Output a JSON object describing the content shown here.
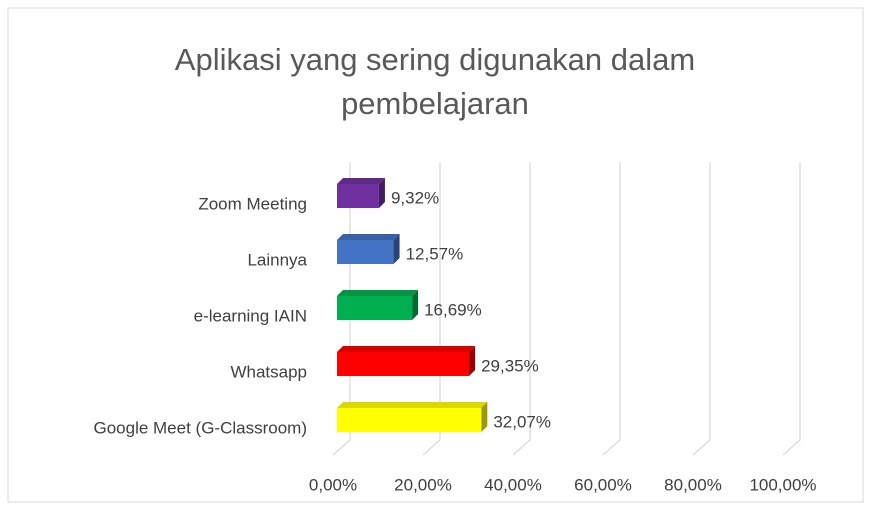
{
  "chart_data": {
    "type": "bar3d_horizontal",
    "title": "Aplikasi yang sering digunakan dalam pembelajaran",
    "categories": [
      "Zoom Meeting",
      "Lainnya",
      "e-learning IAIN",
      "Whatsapp",
      "Google Meet (G-Classroom)"
    ],
    "values": [
      9.32,
      12.57,
      16.69,
      29.35,
      32.07
    ],
    "value_labels": [
      "9,32%",
      "12,57%",
      "16,69%",
      "29,35%",
      "32,07%"
    ],
    "colors": [
      "#7030a0",
      "#4472c4",
      "#00b050",
      "#ff0000",
      "#ffff00"
    ],
    "xlim": [
      0,
      100
    ],
    "xticks": [
      {
        "value": 0,
        "label": "0,00%"
      },
      {
        "value": 20,
        "label": "20,00%"
      },
      {
        "value": 40,
        "label": "40,00%"
      },
      {
        "value": 60,
        "label": "60,00%"
      },
      {
        "value": 80,
        "label": "80,00%"
      },
      {
        "value": 100,
        "label": "100,00%"
      }
    ],
    "grid": true
  }
}
